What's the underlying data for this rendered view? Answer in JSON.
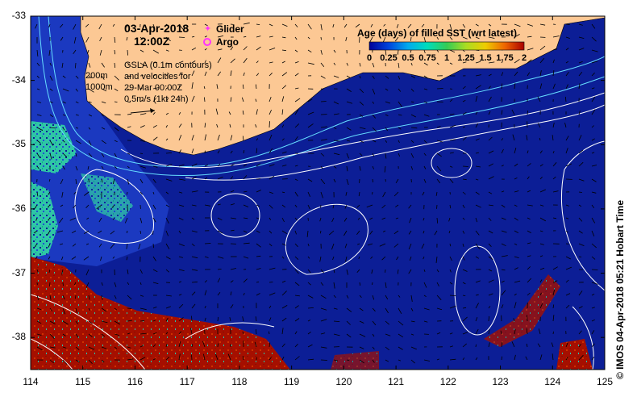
{
  "title": {
    "date": "03-Apr-2018",
    "time": "12:00Z"
  },
  "legend": {
    "glider_label": "Glider",
    "argo_label": "Argo",
    "glider_color": "#ff33ff",
    "argo_color": "#ff33ff"
  },
  "annotation": {
    "gsla_line1": "GSLA (0.1m contours)",
    "gsla_line2": "and velocities for",
    "gsla_line3": "29-Mar 00:00Z",
    "scale_vector": "0.5m/s (1kt 24h)",
    "isobath_200": "200m",
    "isobath_1000": "1000m"
  },
  "colorbar": {
    "title": "Age (days) of filled SST (wrt latest)",
    "ticks": [
      "0",
      "0.25",
      "0.5",
      "0.75",
      "1",
      "1.25",
      "1.5",
      "1.75",
      "2"
    ],
    "range": [
      0,
      2
    ],
    "colors": [
      "#000099",
      "#0044dd",
      "#00aaee",
      "#00ddbb",
      "#33cc55",
      "#aadd22",
      "#eecc00",
      "#ee6600",
      "#aa0000"
    ]
  },
  "axes": {
    "x_ticks": [
      "114",
      "115",
      "116",
      "117",
      "118",
      "119",
      "120",
      "121",
      "122",
      "123",
      "124",
      "125"
    ],
    "y_ticks": [
      "-33",
      "-34",
      "-35",
      "-36",
      "-37",
      "-38"
    ],
    "lon_range": [
      114,
      125
    ],
    "lat_range": [
      -38.5,
      -33
    ]
  },
  "credit": "© IMOS 04-Apr-2018 05:21 Hobart Time",
  "colors": {
    "ocean": "#0c1e96",
    "ocean_shelf": "#1f3fc8",
    "land": "#fcc894",
    "old_sst": "#a50f00",
    "mid_sst": "#22ccaa",
    "contour": "#ffffff",
    "isobath": "#66ddff"
  }
}
